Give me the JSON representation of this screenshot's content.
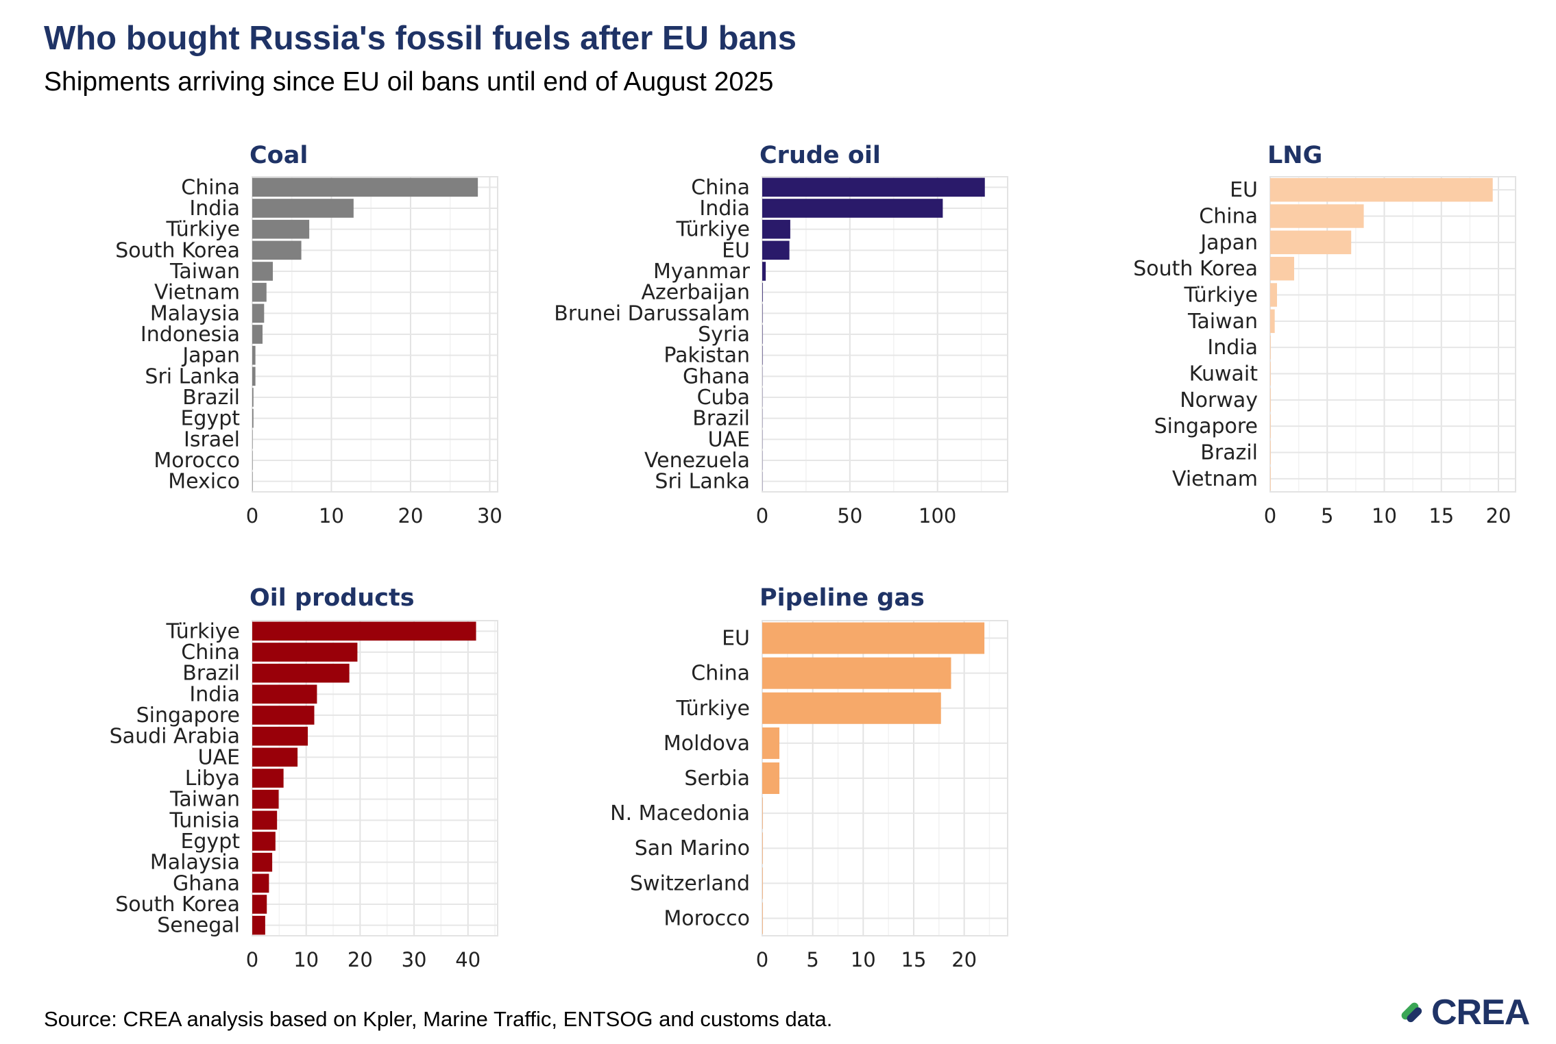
{
  "header": {
    "title": "Who bought Russia's fossil fuels after EU bans",
    "subtitle": "Shipments arriving since EU oil bans until end of August 2025"
  },
  "footer": {
    "source": "Source: CREA analysis based on Kpler, Marine Traffic, ENTSOG and customs data.",
    "logo_text": "CREA"
  },
  "chart_data": [
    {
      "type": "bar",
      "orientation": "horizontal",
      "title": "Coal",
      "color": "#808080",
      "categories": [
        "China",
        "India",
        "Türkiye",
        "South Korea",
        "Taiwan",
        "Vietnam",
        "Malaysia",
        "Indonesia",
        "Japan",
        "Sri Lanka",
        "Brazil",
        "Egypt",
        "Israel",
        "Morocco",
        "Mexico"
      ],
      "values": [
        28.5,
        12.8,
        7.2,
        6.2,
        2.6,
        1.8,
        1.5,
        1.3,
        0.4,
        0.4,
        0.15,
        0.15,
        0.05,
        0.05,
        0.05
      ],
      "xlim": [
        0,
        31
      ],
      "xticks": [
        0,
        10,
        20,
        30
      ]
    },
    {
      "type": "bar",
      "orientation": "horizontal",
      "title": "Crude oil",
      "color": "#2a1a6a",
      "categories": [
        "China",
        "India",
        "Türkiye",
        "EU",
        "Myanmar",
        "Azerbaijan",
        "Brunei Darussalam",
        "Syria",
        "Pakistan",
        "Ghana",
        "Cuba",
        "Brazil",
        "UAE",
        "Venezuela",
        "Sri Lanka"
      ],
      "values": [
        127,
        103,
        16,
        15.5,
        2,
        0.3,
        0.2,
        0.2,
        0.2,
        0.1,
        0.1,
        0.1,
        0.1,
        0.1,
        0.1
      ],
      "xlim": [
        0,
        140
      ],
      "xticks": [
        0,
        50,
        100
      ]
    },
    {
      "type": "bar",
      "orientation": "horizontal",
      "title": "LNG",
      "color": "#fbcda6",
      "categories": [
        "EU",
        "China",
        "Japan",
        "South Korea",
        "Türkiye",
        "Taiwan",
        "India",
        "Kuwait",
        "Norway",
        "Singapore",
        "Brazil",
        "Vietnam"
      ],
      "values": [
        19.5,
        8.2,
        7.1,
        2.1,
        0.6,
        0.4,
        0.05,
        0.05,
        0.05,
        0.05,
        0.05,
        0.05
      ],
      "xlim": [
        0,
        21.5
      ],
      "xticks": [
        0,
        5,
        10,
        15,
        20
      ]
    },
    {
      "type": "bar",
      "orientation": "horizontal",
      "title": "Oil products",
      "color": "#990009",
      "categories": [
        "Türkiye",
        "China",
        "Brazil",
        "India",
        "Singapore",
        "Saudi Arabia",
        "UAE",
        "Libya",
        "Taiwan",
        "Tunisia",
        "Egypt",
        "Malaysia",
        "Ghana",
        "South Korea",
        "Senegal"
      ],
      "values": [
        41.5,
        19.5,
        18,
        12,
        11.5,
        10.3,
        8.4,
        5.8,
        4.9,
        4.6,
        4.3,
        3.7,
        3.1,
        2.7,
        2.4
      ],
      "xlim": [
        0,
        45.5
      ],
      "xticks": [
        0,
        10,
        20,
        30,
        40
      ]
    },
    {
      "type": "bar",
      "orientation": "horizontal",
      "title": "Pipeline gas",
      "color": "#f6a96a",
      "categories": [
        "EU",
        "China",
        "Türkiye",
        "Moldova",
        "Serbia",
        "N. Macedonia",
        "San Marino",
        "Switzerland",
        "Morocco"
      ],
      "values": [
        22,
        18.7,
        17.7,
        1.7,
        1.7,
        0.05,
        0.05,
        0.05,
        0.05
      ],
      "xlim": [
        0,
        24.3
      ],
      "xticks": [
        0,
        5,
        10,
        15,
        20
      ]
    }
  ]
}
